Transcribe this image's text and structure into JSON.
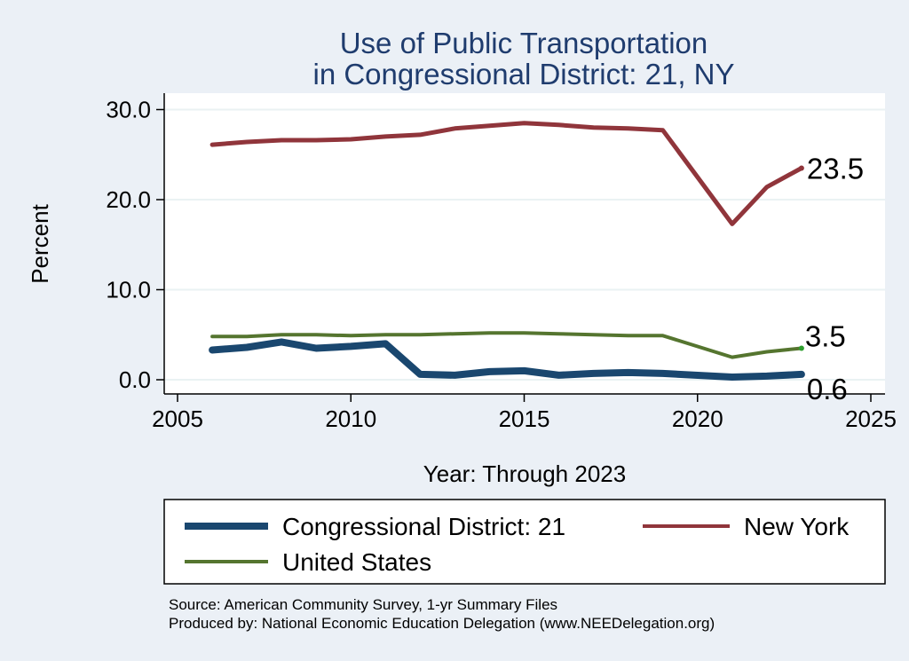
{
  "chart_data": {
    "type": "line",
    "title_line1": "Use of Public Transportation",
    "title_line2": "in Congressional District: 21, NY",
    "xlabel": "Year: Through 2023",
    "ylabel": "Percent",
    "xlim": [
      2005,
      2025
    ],
    "ylim": [
      0,
      30
    ],
    "xticks": [
      2005,
      2010,
      2015,
      2020,
      2025
    ],
    "yticks": [
      0,
      10,
      20,
      30
    ],
    "ytick_labels": [
      "0.0",
      "10.0",
      "20.0",
      "30.0"
    ],
    "grid": true,
    "legend_position": "bottom",
    "x": [
      2006,
      2007,
      2008,
      2009,
      2010,
      2011,
      2012,
      2013,
      2014,
      2015,
      2016,
      2017,
      2018,
      2019,
      2021,
      2022,
      2023
    ],
    "series": [
      {
        "name": "Congressional District: 21",
        "color": "#1a476f",
        "values": [
          3.3,
          3.6,
          4.2,
          3.5,
          3.7,
          4.0,
          0.6,
          0.5,
          0.9,
          1.0,
          0.5,
          0.7,
          0.8,
          0.7,
          0.3,
          0.4,
          0.6
        ],
        "end_label": "0.6"
      },
      {
        "name": "New York",
        "color": "#90353b",
        "values": [
          26.1,
          26.4,
          26.6,
          26.6,
          26.7,
          27.0,
          27.2,
          27.9,
          28.2,
          28.5,
          28.3,
          28.0,
          27.9,
          27.7,
          17.3,
          21.4,
          23.5
        ],
        "end_label": "23.5"
      },
      {
        "name": "United States",
        "color": "#55752f",
        "values": [
          4.8,
          4.8,
          5.0,
          5.0,
          4.9,
          5.0,
          5.0,
          5.1,
          5.2,
          5.2,
          5.1,
          5.0,
          4.9,
          4.9,
          2.5,
          3.1,
          3.5
        ],
        "end_label": "3.5"
      }
    ]
  },
  "source_line1": "Source: American Community Survey, 1-yr Summary Files",
  "source_line2": "Produced by: National Economic Education Delegation (www.NEEDelegation.org)"
}
